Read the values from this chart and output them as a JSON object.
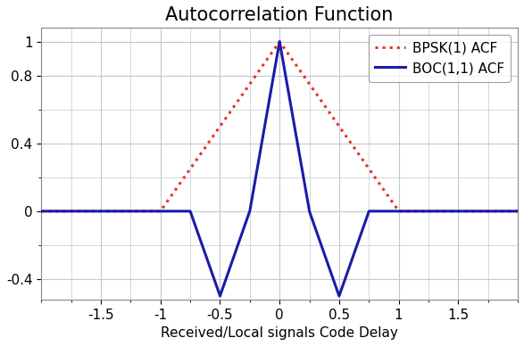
{
  "title": "Autocorrelation Function",
  "xlabel": "Received/Local signals Code Delay",
  "xlim": [
    -2.0,
    2.0
  ],
  "ylim": [
    -0.52,
    1.08
  ],
  "xticks": [
    -1.5,
    -1.0,
    -0.5,
    0.0,
    0.5,
    1.0,
    1.5
  ],
  "yticks": [
    -0.4,
    0.0,
    0.4,
    0.8,
    1.0
  ],
  "ytick_labels": [
    "-0.4",
    "0",
    "0.4",
    "0.8",
    "1"
  ],
  "bpsk_color": "#E8302A",
  "boc_color": "#1B1BA8",
  "bpsk_label": "BPSK(1) ACF",
  "boc_label": "BOC(1,1) ACF",
  "background_color": "#FFFFFF",
  "grid_color": "#C0C8D0",
  "title_fontsize": 15,
  "label_fontsize": 11,
  "tick_fontsize": 11,
  "legend_fontsize": 11,
  "figsize": [
    5.87,
    3.88
  ],
  "dpi": 100
}
